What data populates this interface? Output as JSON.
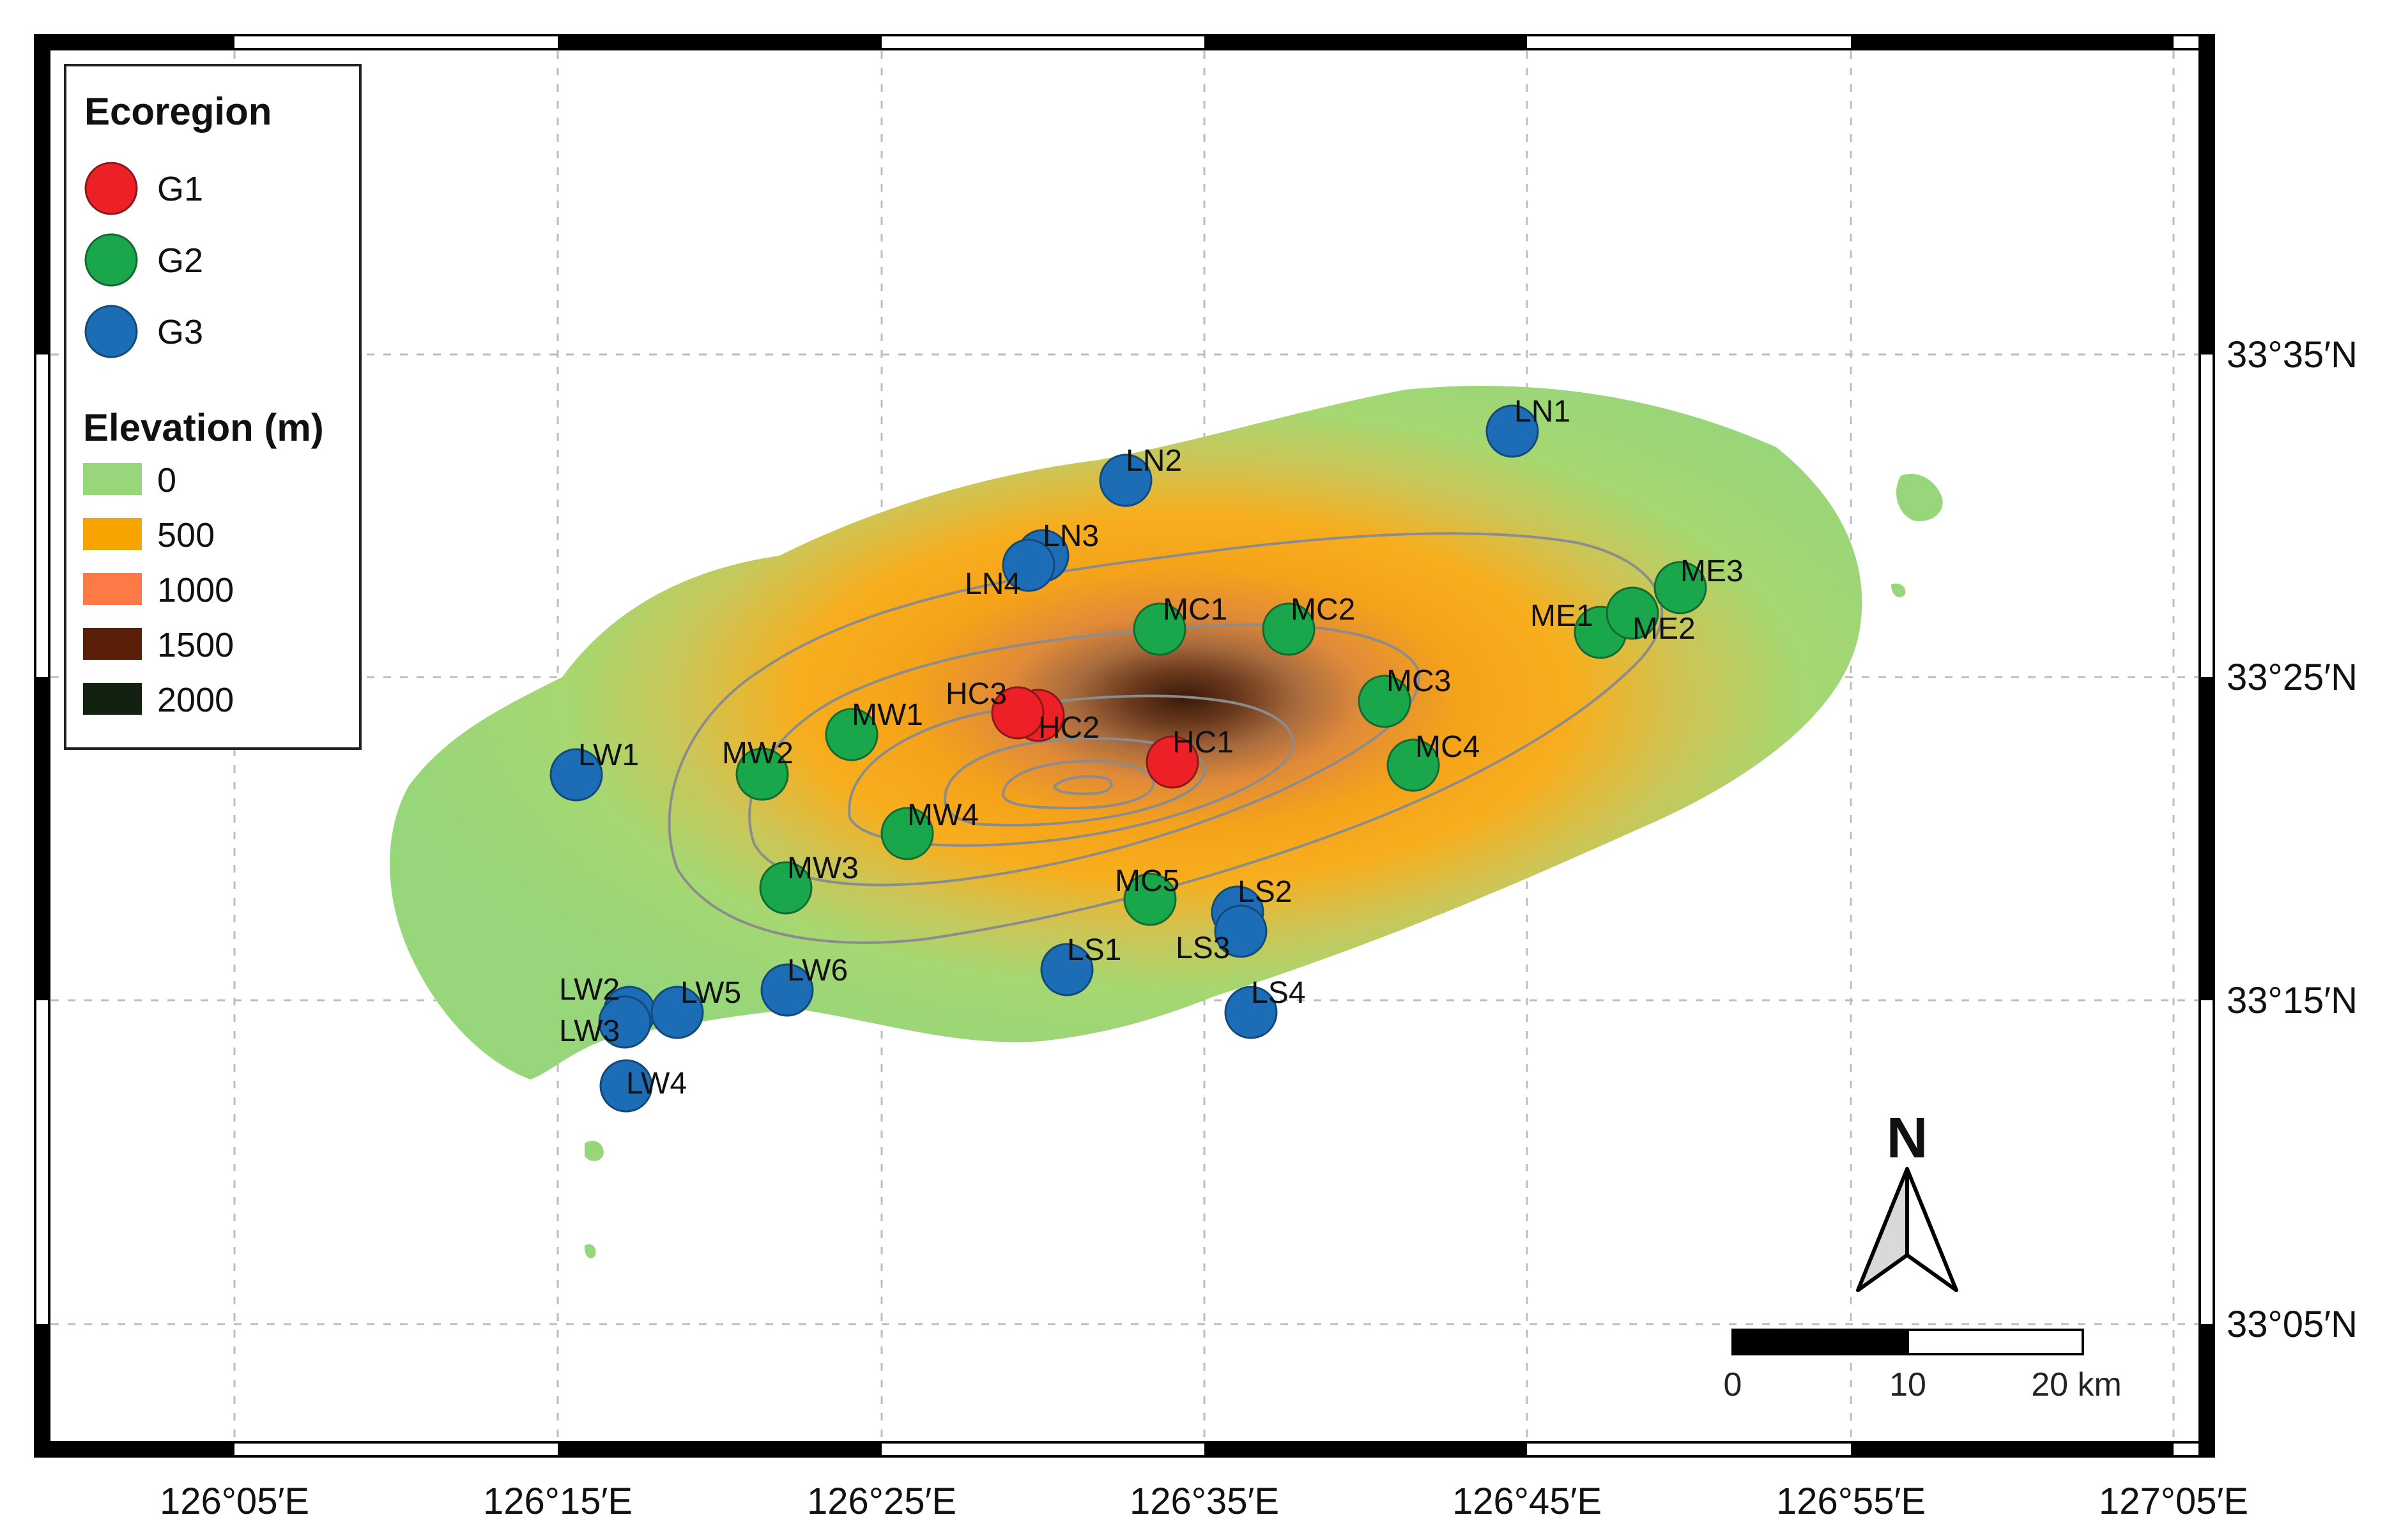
{
  "map": {
    "longitude_labels": [
      "126°05′E",
      "126°15′E",
      "126°25′E",
      "126°35′E",
      "126°45′E",
      "126°55′E",
      "127°05′E"
    ],
    "latitude_labels": [
      "33°35′N",
      "33°25′N",
      "33°15′N",
      "33°05′N"
    ]
  },
  "legend": {
    "ecoregion_title": "Ecoregion",
    "groups": [
      {
        "label": "G1",
        "color": "#ee2027"
      },
      {
        "label": "G2",
        "color": "#1aa64a"
      },
      {
        "label": "G3",
        "color": "#1c6db5"
      }
    ],
    "elevation_title": "Elevation (m)",
    "elevation_classes": [
      {
        "label": "0",
        "color": "#97d67a"
      },
      {
        "label": "500",
        "color": "#f7a400"
      },
      {
        "label": "1000",
        "color": "#fb7a45"
      },
      {
        "label": "1500",
        "color": "#5a1f08"
      },
      {
        "label": "2000",
        "color": "#132210"
      }
    ]
  },
  "sites": [
    {
      "id": "HC1",
      "group": "G1"
    },
    {
      "id": "HC2",
      "group": "G1"
    },
    {
      "id": "HC3",
      "group": "G1"
    },
    {
      "id": "MC1",
      "group": "G2"
    },
    {
      "id": "MC2",
      "group": "G2"
    },
    {
      "id": "MC3",
      "group": "G2"
    },
    {
      "id": "MC4",
      "group": "G2"
    },
    {
      "id": "MC5",
      "group": "G2"
    },
    {
      "id": "ME1",
      "group": "G2"
    },
    {
      "id": "ME2",
      "group": "G2"
    },
    {
      "id": "ME3",
      "group": "G2"
    },
    {
      "id": "MW1",
      "group": "G2"
    },
    {
      "id": "MW2",
      "group": "G2"
    },
    {
      "id": "MW3",
      "group": "G2"
    },
    {
      "id": "MW4",
      "group": "G2"
    },
    {
      "id": "LN1",
      "group": "G3"
    },
    {
      "id": "LN2",
      "group": "G3"
    },
    {
      "id": "LN3",
      "group": "G3"
    },
    {
      "id": "LN4",
      "group": "G3"
    },
    {
      "id": "LS1",
      "group": "G3"
    },
    {
      "id": "LS2",
      "group": "G3"
    },
    {
      "id": "LS3",
      "group": "G3"
    },
    {
      "id": "LS4",
      "group": "G3"
    },
    {
      "id": "LW1",
      "group": "G3"
    },
    {
      "id": "LW2",
      "group": "G3"
    },
    {
      "id": "LW3",
      "group": "G3"
    },
    {
      "id": "LW4",
      "group": "G3"
    },
    {
      "id": "LW5",
      "group": "G3"
    },
    {
      "id": "LW6",
      "group": "G3"
    }
  ],
  "north_arrow": {
    "label": "N"
  },
  "scale_bar": {
    "labels": [
      "0",
      "10",
      "20 km"
    ]
  }
}
